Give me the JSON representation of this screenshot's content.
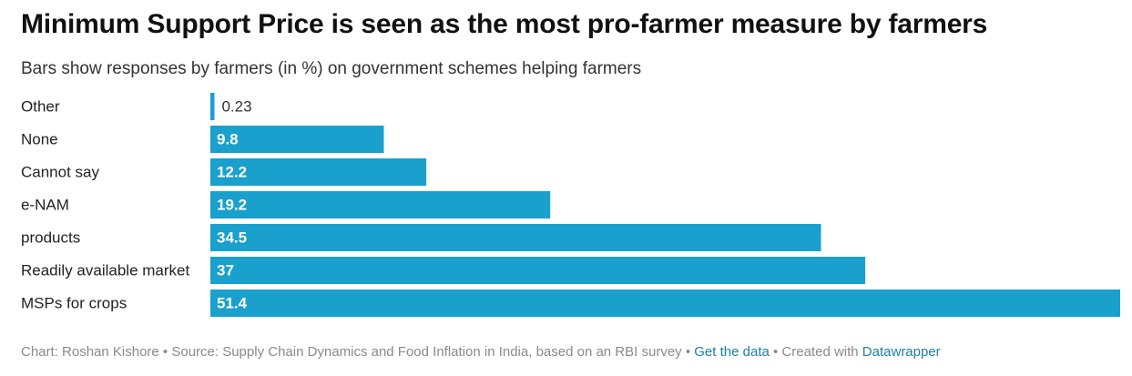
{
  "chart_data": {
    "type": "bar",
    "orientation": "horizontal",
    "title": "Minimum Support Price is seen as the most pro-farmer measure by farmers",
    "subtitle": "Bars show responses by farmers (in %) on government schemes helping farmers",
    "xlabel": "",
    "ylabel": "",
    "xlim": [
      0,
      51.4
    ],
    "bar_color": "#1aa0cc",
    "categories": [
      "Other",
      "None",
      "Cannot say",
      "e-NAM",
      "products",
      "Readily available market",
      "MSPs for crops"
    ],
    "values": [
      0.23,
      9.8,
      12.2,
      19.2,
      34.5,
      37,
      51.4
    ],
    "value_labels": [
      "0.23",
      "9.8",
      "12.2",
      "19.2",
      "34.5",
      "37",
      "51.4"
    ]
  },
  "footer": {
    "chart_by": "Chart: Roshan Kishore",
    "sep1": " • ",
    "source": "Source: Supply Chain Dynamics and Food Inflation in India, based on an RBI survey",
    "sep2": " • ",
    "get_data": "Get the data",
    "sep3": " • ",
    "created_with": "Created with ",
    "datawrapper": "Datawrapper"
  }
}
